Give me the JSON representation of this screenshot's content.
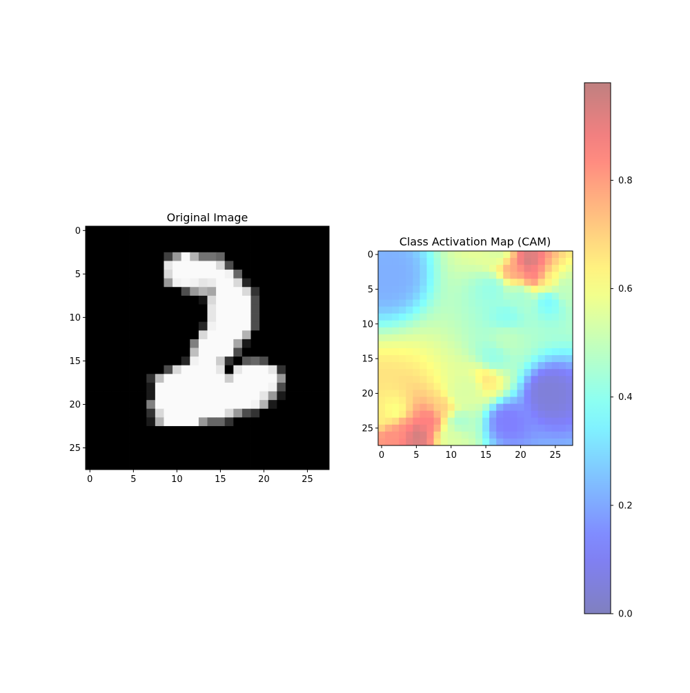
{
  "chart_data": [
    {
      "type": "heatmap",
      "title": "Original Image",
      "colormap": "gray",
      "x_ticks": [
        "0",
        "5",
        "10",
        "15",
        "20",
        "25"
      ],
      "y_ticks": [
        "0",
        "5",
        "10",
        "15",
        "20",
        "25"
      ],
      "xlim": [
        -0.5,
        27.5
      ],
      "ylim": [
        27.5,
        -0.5
      ],
      "grid": false,
      "shape": [
        28,
        28
      ],
      "values": [
        [
          0,
          0,
          0,
          0,
          0,
          0,
          0,
          0,
          0,
          0,
          0,
          0,
          0,
          0,
          0,
          0,
          0,
          0,
          0,
          0,
          0,
          0,
          0,
          0,
          0,
          0,
          0,
          0
        ],
        [
          0,
          0,
          0,
          0,
          0,
          0,
          0,
          0,
          0,
          0,
          0,
          0,
          0,
          0,
          0,
          0,
          0,
          0,
          0,
          0,
          0,
          0,
          0,
          0,
          0,
          0,
          0,
          0
        ],
        [
          0,
          0,
          0,
          0,
          0,
          0,
          0,
          0,
          0,
          0,
          0,
          0,
          0,
          0,
          0,
          0,
          0,
          0,
          0,
          0,
          0,
          0,
          0,
          0,
          0,
          0,
          0,
          0
        ],
        [
          0,
          0,
          0,
          0,
          0,
          0,
          0,
          0,
          0,
          0.25,
          0.6,
          0.97,
          0.7,
          0.45,
          0.45,
          0.4,
          0,
          0,
          0,
          0,
          0,
          0,
          0,
          0,
          0,
          0,
          0,
          0
        ],
        [
          0,
          0,
          0,
          0,
          0,
          0,
          0,
          0,
          0,
          0.9,
          0.98,
          0.98,
          0.98,
          0.98,
          0.98,
          0.85,
          0.3,
          0,
          0,
          0,
          0,
          0,
          0,
          0,
          0,
          0,
          0,
          0
        ],
        [
          0,
          0,
          0,
          0,
          0,
          0,
          0,
          0,
          0,
          0.85,
          0.98,
          0.98,
          0.98,
          0.98,
          0.98,
          0.98,
          0.95,
          0.4,
          0,
          0,
          0,
          0,
          0,
          0,
          0,
          0,
          0,
          0
        ],
        [
          0,
          0,
          0,
          0,
          0,
          0,
          0,
          0,
          0,
          0.6,
          0.95,
          0.97,
          0.95,
          0.9,
          0.92,
          0.98,
          0.98,
          0.85,
          0.15,
          0,
          0,
          0,
          0,
          0,
          0,
          0,
          0,
          0
        ],
        [
          0,
          0,
          0,
          0,
          0,
          0,
          0,
          0,
          0,
          0,
          0,
          0.3,
          0.6,
          0.7,
          0.65,
          0.98,
          0.98,
          0.98,
          0.85,
          0.2,
          0,
          0,
          0,
          0,
          0,
          0,
          0,
          0
        ],
        [
          0,
          0,
          0,
          0,
          0,
          0,
          0,
          0,
          0,
          0,
          0,
          0,
          0,
          0.08,
          0.85,
          0.98,
          0.98,
          0.98,
          0.98,
          0.3,
          0,
          0,
          0,
          0,
          0,
          0,
          0,
          0
        ],
        [
          0,
          0,
          0,
          0,
          0,
          0,
          0,
          0,
          0,
          0,
          0,
          0,
          0,
          0,
          0.9,
          0.98,
          0.98,
          0.98,
          0.98,
          0.3,
          0,
          0,
          0,
          0,
          0,
          0,
          0,
          0
        ],
        [
          0,
          0,
          0,
          0,
          0,
          0,
          0,
          0,
          0,
          0,
          0,
          0,
          0,
          0,
          0.9,
          0.98,
          0.98,
          0.98,
          0.98,
          0.3,
          0,
          0,
          0,
          0,
          0,
          0,
          0,
          0
        ],
        [
          0,
          0,
          0,
          0,
          0,
          0,
          0,
          0,
          0,
          0,
          0,
          0,
          0,
          0.15,
          0.95,
          0.98,
          0.98,
          0.98,
          0.98,
          0.3,
          0,
          0,
          0,
          0,
          0,
          0,
          0,
          0
        ],
        [
          0,
          0,
          0,
          0,
          0,
          0,
          0,
          0,
          0,
          0,
          0,
          0,
          0,
          0.85,
          0.98,
          0.98,
          0.98,
          0.98,
          0.7,
          0,
          0,
          0,
          0,
          0,
          0,
          0,
          0,
          0
        ],
        [
          0,
          0,
          0,
          0,
          0,
          0,
          0,
          0,
          0,
          0,
          0,
          0,
          0.5,
          0.98,
          0.98,
          0.98,
          0.98,
          0.65,
          0.1,
          0,
          0,
          0,
          0,
          0,
          0,
          0,
          0,
          0
        ],
        [
          0,
          0,
          0,
          0,
          0,
          0,
          0,
          0,
          0,
          0,
          0,
          0,
          0.75,
          0.98,
          0.98,
          0.98,
          0.98,
          0.3,
          0,
          0,
          0,
          0,
          0,
          0,
          0,
          0,
          0,
          0
        ],
        [
          0,
          0,
          0,
          0,
          0,
          0,
          0,
          0,
          0,
          0,
          0,
          0.15,
          0.95,
          0.98,
          0.98,
          0.8,
          0.2,
          0,
          0.35,
          0.4,
          0.3,
          0,
          0,
          0,
          0,
          0,
          0,
          0
        ],
        [
          0,
          0,
          0,
          0,
          0,
          0,
          0,
          0,
          0,
          0.3,
          0.85,
          0.98,
          0.98,
          0.98,
          0.98,
          0.9,
          0,
          0.9,
          0.98,
          0.98,
          0.98,
          0.9,
          0.2,
          0,
          0,
          0,
          0,
          0
        ],
        [
          0,
          0,
          0,
          0,
          0,
          0,
          0,
          0.2,
          0.75,
          0.98,
          0.98,
          0.98,
          0.98,
          0.98,
          0.98,
          0.98,
          0.8,
          0.98,
          0.98,
          0.98,
          0.98,
          0.98,
          0.6,
          0,
          0,
          0,
          0,
          0
        ],
        [
          0,
          0,
          0,
          0,
          0,
          0,
          0,
          0.1,
          0.98,
          0.98,
          0.98,
          0.98,
          0.98,
          0.98,
          0.98,
          0.98,
          0.98,
          0.98,
          0.98,
          0.98,
          0.98,
          0.95,
          0.3,
          0,
          0,
          0,
          0,
          0
        ],
        [
          0,
          0,
          0,
          0,
          0,
          0,
          0,
          0.1,
          0.98,
          0.98,
          0.98,
          0.98,
          0.98,
          0.98,
          0.98,
          0.98,
          0.98,
          0.98,
          0.98,
          0.98,
          0.9,
          0.6,
          0.1,
          0,
          0,
          0,
          0,
          0
        ],
        [
          0,
          0,
          0,
          0,
          0,
          0,
          0,
          0.5,
          0.98,
          0.98,
          0.98,
          0.98,
          0.98,
          0.98,
          0.98,
          0.98,
          0.98,
          0.98,
          0.98,
          0.95,
          0.7,
          0.1,
          0,
          0,
          0,
          0,
          0,
          0
        ],
        [
          0,
          0,
          0,
          0,
          0,
          0,
          0,
          0.2,
          0.85,
          0.98,
          0.98,
          0.98,
          0.98,
          0.98,
          0.98,
          0.98,
          0.85,
          0.6,
          0.3,
          0.2,
          0,
          0,
          0,
          0,
          0,
          0,
          0,
          0
        ],
        [
          0,
          0,
          0,
          0,
          0,
          0,
          0,
          0.1,
          0.7,
          0.98,
          0.98,
          0.98,
          0.98,
          0.6,
          0.4,
          0.4,
          0.2,
          0,
          0,
          0,
          0,
          0,
          0,
          0,
          0,
          0,
          0,
          0
        ],
        [
          0,
          0,
          0,
          0,
          0,
          0,
          0,
          0,
          0,
          0,
          0,
          0,
          0,
          0,
          0,
          0,
          0,
          0,
          0,
          0,
          0,
          0,
          0,
          0,
          0,
          0,
          0,
          0
        ],
        [
          0,
          0,
          0,
          0,
          0,
          0,
          0,
          0,
          0,
          0,
          0,
          0,
          0,
          0,
          0,
          0,
          0,
          0,
          0,
          0,
          0,
          0,
          0,
          0,
          0,
          0,
          0,
          0
        ],
        [
          0,
          0,
          0,
          0,
          0,
          0,
          0,
          0,
          0,
          0,
          0,
          0,
          0,
          0,
          0,
          0,
          0,
          0,
          0,
          0,
          0,
          0,
          0,
          0,
          0,
          0,
          0,
          0
        ],
        [
          0,
          0,
          0,
          0,
          0,
          0,
          0,
          0,
          0,
          0,
          0,
          0,
          0,
          0,
          0,
          0,
          0,
          0,
          0,
          0,
          0,
          0,
          0,
          0,
          0,
          0,
          0,
          0
        ],
        [
          0,
          0,
          0,
          0,
          0,
          0,
          0,
          0,
          0,
          0,
          0,
          0,
          0,
          0,
          0,
          0,
          0,
          0,
          0,
          0,
          0,
          0,
          0,
          0,
          0,
          0,
          0,
          0
        ]
      ]
    },
    {
      "type": "heatmap",
      "title": "Class Activation Map (CAM)",
      "colormap": "jet",
      "alpha": 0.5,
      "x_ticks": [
        "0",
        "5",
        "10",
        "15",
        "20",
        "25"
      ],
      "y_ticks": [
        "0",
        "5",
        "10",
        "15",
        "20",
        "25"
      ],
      "xlim": [
        -0.5,
        27.5
      ],
      "ylim": [
        27.5,
        -0.5
      ],
      "grid": false,
      "shape": [
        28,
        28
      ],
      "interpolation": "bilinear",
      "anchors": [
        {
          "x": 21,
          "y": 1,
          "v": 0.97
        },
        {
          "x": 22,
          "y": 3,
          "v": 0.88
        },
        {
          "x": 19,
          "y": 2,
          "v": 0.8
        },
        {
          "x": 24,
          "y": 4,
          "v": 0.65
        },
        {
          "x": 26,
          "y": 5,
          "v": 0.5
        },
        {
          "x": 17,
          "y": 0,
          "v": 0.55
        },
        {
          "x": 16,
          "y": 5,
          "v": 0.42
        },
        {
          "x": 20,
          "y": 6,
          "v": 0.45
        },
        {
          "x": 24,
          "y": 6.5,
          "v": 0.35
        },
        {
          "x": 18,
          "y": 9,
          "v": 0.4
        },
        {
          "x": 18,
          "y": 12,
          "v": 0.5
        },
        {
          "x": 16,
          "y": 15,
          "v": 0.42
        },
        {
          "x": 15,
          "y": 18,
          "v": 0.68
        },
        {
          "x": 13,
          "y": 19,
          "v": 0.55
        },
        {
          "x": 11,
          "y": 20.5,
          "v": 0.55
        },
        {
          "x": 9,
          "y": 22,
          "v": 0.72
        },
        {
          "x": 7,
          "y": 24,
          "v": 0.88
        },
        {
          "x": 5,
          "y": 26,
          "v": 0.97
        },
        {
          "x": 3,
          "y": 25,
          "v": 0.85
        },
        {
          "x": 1,
          "y": 26,
          "v": 0.85
        },
        {
          "x": 2,
          "y": 23,
          "v": 0.6
        },
        {
          "x": 0,
          "y": 24,
          "v": 0.65
        },
        {
          "x": 10,
          "y": 26,
          "v": 0.55
        },
        {
          "x": 11,
          "y": 24,
          "v": 0.45
        },
        {
          "x": 1,
          "y": 3,
          "v": 0.22
        },
        {
          "x": 18,
          "y": 24,
          "v": 0.12
        },
        {
          "x": 24,
          "y": 20,
          "v": 0.05
        }
      ]
    }
  ],
  "colorbar": {
    "colormap": "jet",
    "alpha": 0.5,
    "range": [
      0,
      0.98
    ],
    "ticks": [
      {
        "value": 0.0,
        "label": "0.0"
      },
      {
        "value": 0.2,
        "label": "0.2"
      },
      {
        "value": 0.4,
        "label": "0.4"
      },
      {
        "value": 0.6,
        "label": "0.6"
      },
      {
        "value": 0.8,
        "label": "0.8"
      }
    ]
  }
}
